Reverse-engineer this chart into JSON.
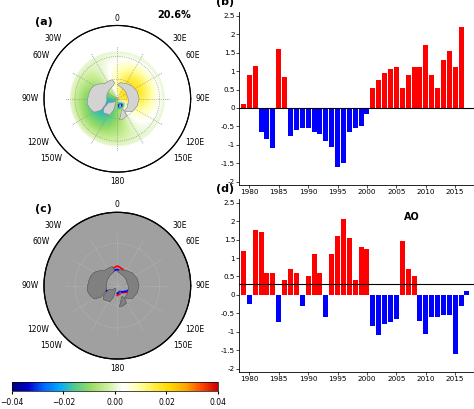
{
  "panel_b_years": [
    1979,
    1980,
    1981,
    1982,
    1983,
    1984,
    1985,
    1986,
    1987,
    1988,
    1989,
    1990,
    1991,
    1992,
    1993,
    1994,
    1995,
    1996,
    1997,
    1998,
    1999,
    2000,
    2001,
    2002,
    2003,
    2004,
    2005,
    2006,
    2007,
    2008,
    2009,
    2010,
    2011,
    2012,
    2013,
    2014,
    2015,
    2016,
    2017
  ],
  "panel_b_values": [
    0.1,
    0.9,
    1.15,
    -0.65,
    -0.85,
    -1.1,
    1.6,
    0.85,
    -0.75,
    -0.6,
    -0.55,
    -0.55,
    -0.65,
    -0.7,
    -0.9,
    -1.05,
    -1.6,
    -1.5,
    -0.65,
    -0.55,
    -0.5,
    -0.15,
    0.55,
    0.75,
    0.95,
    1.05,
    1.1,
    0.55,
    0.9,
    1.1,
    1.1,
    1.7,
    0.9,
    0.55,
    1.3,
    1.55,
    1.1,
    2.2,
    0.0
  ],
  "panel_d_years": [
    1979,
    1980,
    1981,
    1982,
    1983,
    1984,
    1985,
    1986,
    1987,
    1988,
    1989,
    1990,
    1991,
    1992,
    1993,
    1994,
    1995,
    1996,
    1997,
    1998,
    1999,
    2000,
    2001,
    2002,
    2003,
    2004,
    2005,
    2006,
    2007,
    2008,
    2009,
    2010,
    2011,
    2012,
    2013,
    2014,
    2015,
    2016,
    2017
  ],
  "panel_d_values": [
    1.2,
    -0.25,
    1.75,
    1.7,
    0.6,
    0.6,
    -0.75,
    0.4,
    0.7,
    0.6,
    -0.3,
    0.5,
    1.1,
    0.6,
    -0.6,
    1.1,
    1.6,
    2.05,
    1.55,
    0.4,
    1.3,
    1.25,
    -0.85,
    -1.1,
    -0.8,
    -0.75,
    -0.65,
    1.45,
    0.7,
    0.5,
    -0.7,
    -1.05,
    -0.6,
    -0.6,
    -0.55,
    -0.55,
    -1.6,
    -0.3,
    0.1
  ],
  "panel_d_threshold": 0.3,
  "ylim_b": [
    -2.1,
    2.6
  ],
  "ylim_d": [
    -2.1,
    2.6
  ],
  "colorbar_values": [
    -0.04,
    -0.02,
    0.0,
    0.02,
    0.04
  ],
  "title_percent": "20.6%",
  "ao_label": "AO",
  "xlabel_ticks": [
    1980,
    1985,
    1990,
    1995,
    2000,
    2005,
    2010,
    2015
  ],
  "map_bg_a": "#d3d3d3",
  "map_bg_c": "#808080",
  "ocean_color_a": "#ffffff",
  "ocean_color_c": "#c8c8c8",
  "grid_color_a": "#aaaaaa",
  "grid_color_c": "#aaaaaa"
}
